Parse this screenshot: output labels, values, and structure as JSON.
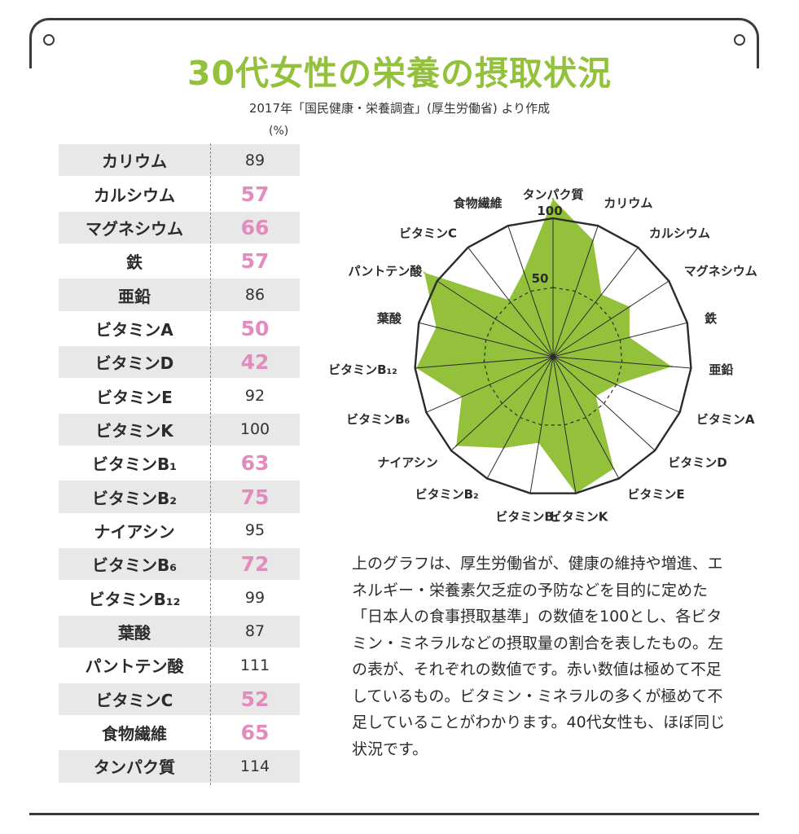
{
  "title": "30代女性の栄養の摂取状況",
  "subtitle": "2017年「国民健康・栄養調査」(厚生労働省) より作成",
  "unit": "(%)",
  "colors": {
    "accent": "#93c13c",
    "low_value": "#e38bbd",
    "row_shade": "#e8e8e8"
  },
  "note": "上のグラフは、厚生労働省が、健康の維持や増進、エネルギー・栄養素欠乏症の予防などを目的に定めた「日本人の食事摂取基準」の数値を100とし、各ビタミン・ミネラルなどの摂取量の割合を表したもの。左の表が、それぞれの数値です。赤い数値は極めて不足しているもの。ビタミン・ミネラルの多くが極めて不足していることがわかります。40代女性も、ほぼ同じ状況です。",
  "table": [
    {
      "name": "カリウム",
      "value": "89",
      "low": false
    },
    {
      "name": "カルシウム",
      "value": "57",
      "low": true
    },
    {
      "name": "マグネシウム",
      "value": "66",
      "low": true
    },
    {
      "name": "鉄",
      "value": "57",
      "low": true
    },
    {
      "name": "亜鉛",
      "value": "86",
      "low": false
    },
    {
      "name": "ビタミンA",
      "value": "50",
      "low": true
    },
    {
      "name": "ビタミンD",
      "value": "42",
      "low": true
    },
    {
      "name": "ビタミンE",
      "value": "92",
      "low": false
    },
    {
      "name": "ビタミンK",
      "value": "100",
      "low": false
    },
    {
      "name": "ビタミンB₁",
      "value": "63",
      "low": true
    },
    {
      "name": "ビタミンB₂",
      "value": "75",
      "low": true
    },
    {
      "name": "ナイアシン",
      "value": "95",
      "low": false
    },
    {
      "name": "ビタミンB₆",
      "value": "72",
      "low": true
    },
    {
      "name": "ビタミンB₁₂",
      "value": "99",
      "low": false
    },
    {
      "name": "葉酸",
      "value": "87",
      "low": false
    },
    {
      "name": "パントテン酸",
      "value": "111",
      "low": false
    },
    {
      "name": "ビタミンC",
      "value": "52",
      "low": true
    },
    {
      "name": "食物繊維",
      "value": "65",
      "low": true
    },
    {
      "name": "タンパク質",
      "value": "114",
      "low": false
    }
  ],
  "chart_data": {
    "type": "radar",
    "categories": [
      "タンパク質",
      "カリウム",
      "カルシウム",
      "マグネシウム",
      "鉄",
      "亜鉛",
      "ビタミンA",
      "ビタミンD",
      "ビタミンE",
      "ビタミンK",
      "ビタミンB₁",
      "ビタミンB₂",
      "ナイアシン",
      "ビタミンB₆",
      "ビタミンB₁₂",
      "葉酸",
      "パントテン酸",
      "ビタミンC",
      "食物繊維"
    ],
    "values": [
      114,
      89,
      57,
      66,
      57,
      86,
      50,
      42,
      92,
      100,
      63,
      75,
      95,
      72,
      99,
      87,
      111,
      52,
      65
    ],
    "ticks": [
      "50",
      "100"
    ],
    "range": [
      0,
      100
    ],
    "fill_color": "#93c13c"
  }
}
